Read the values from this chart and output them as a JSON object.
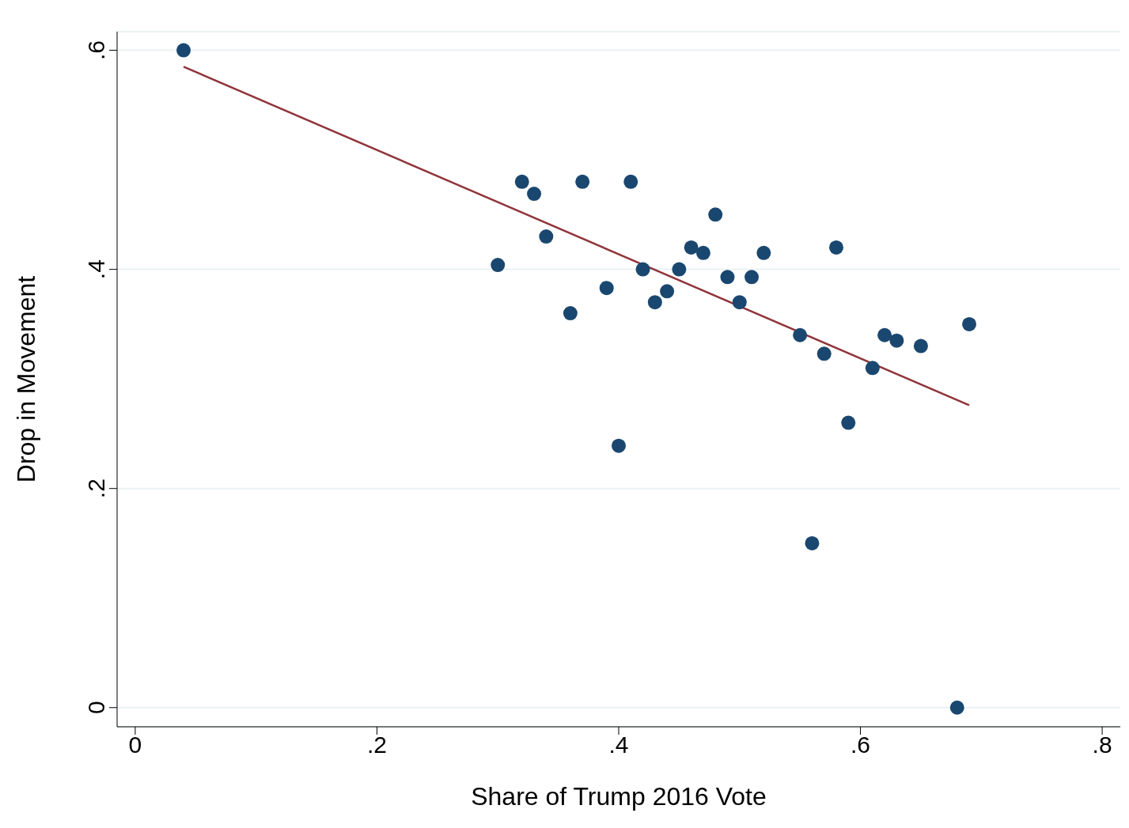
{
  "chart_data": {
    "type": "scatter",
    "xlabel": "Share of Trump 2016 Vote",
    "ylabel": "Drop in Movement",
    "xlim": [
      -0.015,
      0.815
    ],
    "ylim": [
      -0.0175,
      0.617
    ],
    "xticks": [
      0,
      {
        "value": 0.2,
        "label": ".2"
      },
      {
        "value": 0.4,
        "label": ".4"
      },
      {
        "value": 0.6,
        "label": ".6"
      },
      {
        "value": 0.8,
        "label": ".8"
      }
    ],
    "yticks": [
      0,
      {
        "value": 0.2,
        "label": ".2"
      },
      {
        "value": 0.4,
        "label": ".4"
      },
      {
        "value": 0.6,
        "label": ".6"
      }
    ],
    "grid": "y",
    "series": [
      {
        "marker": "circle",
        "color": "#1a476f",
        "x": [
          0.04,
          0.3,
          0.32,
          0.33,
          0.34,
          0.36,
          0.37,
          0.39,
          0.4,
          0.41,
          0.42,
          0.43,
          0.44,
          0.45,
          0.46,
          0.47,
          0.48,
          0.49,
          0.5,
          0.51,
          0.52,
          0.55,
          0.56,
          0.57,
          0.58,
          0.59,
          0.61,
          0.62,
          0.63,
          0.65,
          0.68,
          0.69
        ],
        "values": [
          0.6,
          0.404,
          0.48,
          0.469,
          0.43,
          0.36,
          0.48,
          0.383,
          0.239,
          0.48,
          0.4,
          0.37,
          0.38,
          0.4,
          0.42,
          0.415,
          0.45,
          0.393,
          0.37,
          0.393,
          0.415,
          0.34,
          0.15,
          0.323,
          0.42,
          0.26,
          0.31,
          0.34,
          0.335,
          0.33,
          0,
          0.35
        ]
      },
      {
        "type": "line",
        "marker": "none",
        "color": "#90353b",
        "line_style": "solid",
        "x": [
          0.04,
          0.69
        ],
        "values": [
          0.585,
          0.276
        ]
      }
    ]
  }
}
